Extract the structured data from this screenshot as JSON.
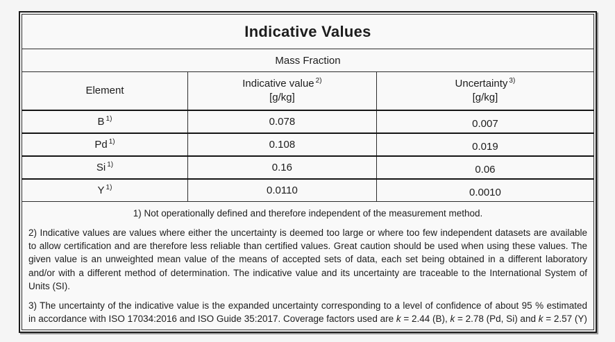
{
  "colors": {
    "background": "#f5f5f5",
    "frame_border": "#1b1b1b",
    "text": "#1c1c1c"
  },
  "table": {
    "title": "Indicative Values",
    "subtitle": "Mass Fraction",
    "columns": {
      "element_label": "Element",
      "indicative_label": "Indicative value",
      "indicative_note": "2)",
      "indicative_unit": "[g/kg]",
      "uncertainty_label": "Uncertainty",
      "uncertainty_note": "3)",
      "uncertainty_unit": "[g/kg]"
    },
    "rows": [
      {
        "element": {
          "symbol": "B",
          "note": "1)"
        },
        "indicative": "0.078",
        "uncertainty": "0.007"
      },
      {
        "element": {
          "symbol": "Pd",
          "note": "1)"
        },
        "indicative": "0.108",
        "uncertainty": "0.019"
      },
      {
        "element": {
          "symbol": "Si",
          "note": "1)"
        },
        "indicative": "0.16",
        "uncertainty": "0.06"
      },
      {
        "element": {
          "symbol": "Y",
          "note": "1)"
        },
        "indicative": "0.0110",
        "uncertainty": "0.0010"
      }
    ]
  },
  "footnotes": {
    "note1": "1) Not operationally defined and therefore independent of the measurement method.",
    "note2": "2) Indicative values are values where either the uncertainty is deemed too large or where too few independent datasets are available to allow certification and are therefore less reliable than certified values. Great caution should be used when using these values. The given value is an unweighted mean value of the means of accepted sets of data, each set being obtained in a different laboratory and/or with a different method of determination. The indicative value and its uncertainty are traceable to the International System of Units (SI).",
    "note3": {
      "seg0": "3) The uncertainty of the indicative value is the expanded uncertainty corresponding to a level of confidence of about 95 % estimated in accordance with ISO 17034:2016 and ISO Guide 35:2017. Coverage factors used are ",
      "k1": "k",
      "seg1": " = 2.44 (B), ",
      "k2": "k",
      "seg2": " = 2.78 (Pd, Si) and ",
      "k3": "k",
      "seg3": " = 2.57 (Y)"
    }
  }
}
